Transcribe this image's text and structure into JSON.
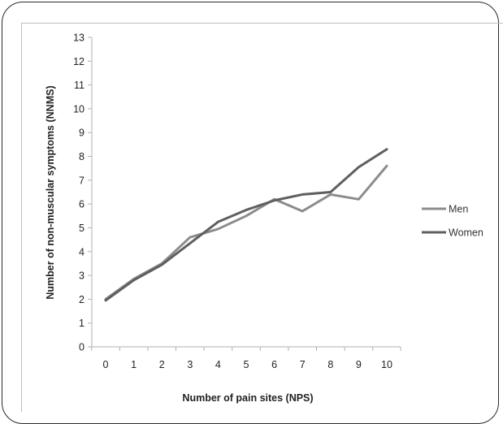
{
  "chart_data": {
    "type": "line",
    "xlabel": "Number of pain sites (NPS)",
    "ylabel": "Number of non-muscular symptoms (NNMS)",
    "x": [
      0,
      1,
      2,
      3,
      4,
      5,
      6,
      7,
      8,
      9,
      10
    ],
    "ylim": [
      0,
      13
    ],
    "yticks": [
      0,
      1,
      2,
      3,
      4,
      5,
      6,
      7,
      8,
      9,
      10,
      11,
      12,
      13
    ],
    "grid": false,
    "legend_position": "right",
    "series": [
      {
        "name": "Men",
        "color": "#8c8c8c",
        "values": [
          2.0,
          2.85,
          3.5,
          4.6,
          4.95,
          5.5,
          6.2,
          5.7,
          6.4,
          6.2,
          7.6
        ]
      },
      {
        "name": "Women",
        "color": "#5f5f5f",
        "values": [
          1.95,
          2.8,
          3.45,
          4.35,
          5.25,
          5.75,
          6.15,
          6.4,
          6.5,
          7.55,
          8.3
        ]
      }
    ]
  }
}
